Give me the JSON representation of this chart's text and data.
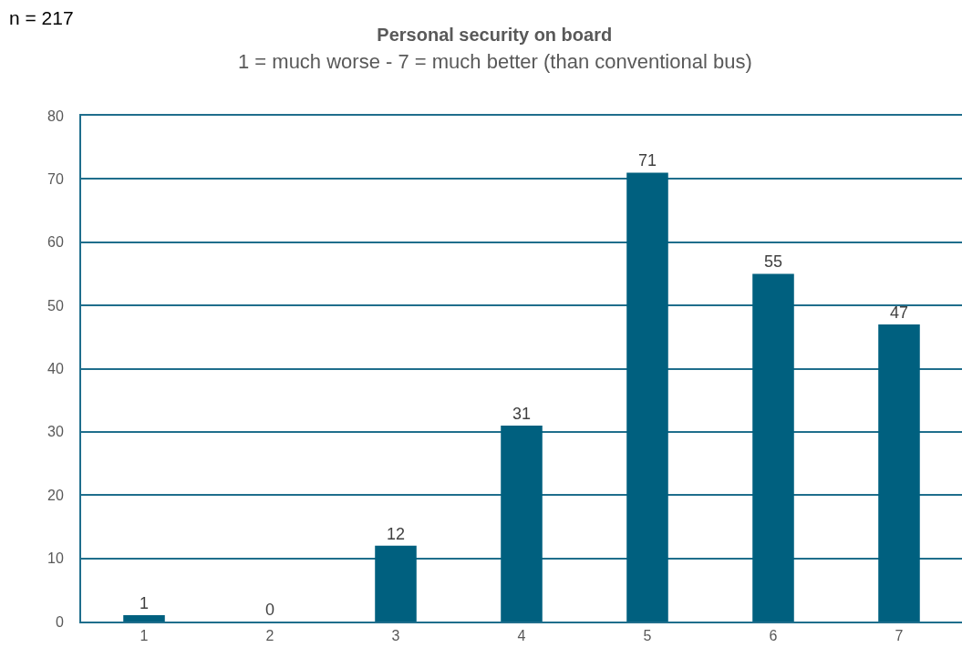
{
  "chart_data": {
    "type": "bar",
    "title": "Personal security on board",
    "subtitle": "1 = much worse - 7 = much better (than conventional bus)",
    "annotations": [
      "n = 217"
    ],
    "categories": [
      "1",
      "2",
      "3",
      "4",
      "5",
      "6",
      "7"
    ],
    "values": [
      1,
      0,
      12,
      31,
      71,
      55,
      47
    ],
    "color": "#00607f",
    "ylim": [
      0,
      80
    ],
    "yticks": [
      0,
      10,
      20,
      30,
      40,
      50,
      60,
      70,
      80
    ],
    "grid": "y",
    "data_labels": true
  }
}
